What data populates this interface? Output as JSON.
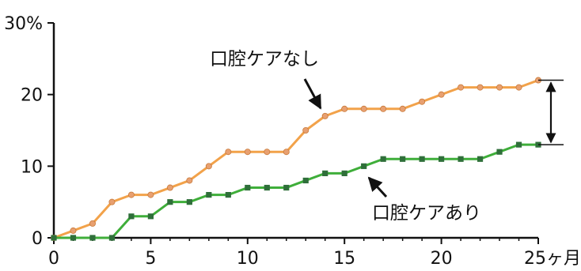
{
  "chart_data": {
    "type": "line",
    "x": [
      0,
      1,
      2,
      3,
      4,
      5,
      6,
      7,
      8,
      9,
      10,
      11,
      12,
      13,
      14,
      15,
      16,
      17,
      18,
      19,
      20,
      21,
      22,
      23,
      24,
      25
    ],
    "series": [
      {
        "name": "口腔ケアなし",
        "color": "#f2a24a",
        "marker_color": "#e8a070",
        "values": [
          0,
          1,
          2,
          5,
          6,
          6,
          7,
          8,
          10,
          12,
          12,
          12,
          12,
          15,
          17,
          18,
          18,
          18,
          18,
          19,
          20,
          21,
          21,
          21,
          21,
          22
        ]
      },
      {
        "name": "口腔ケアあり",
        "color": "#3fae3a",
        "marker_color": "#2f6f3a",
        "values": [
          0,
          0,
          0,
          0,
          3,
          3,
          5,
          5,
          6,
          6,
          7,
          7,
          7,
          8,
          9,
          9,
          10,
          11,
          11,
          11,
          11,
          11,
          11,
          12,
          13,
          13
        ]
      }
    ],
    "xlim": [
      0,
      25
    ],
    "ylim": [
      0,
      30
    ],
    "x_ticks": [
      0,
      5,
      10,
      15,
      20,
      25
    ],
    "x_tick_labels": [
      "0",
      "5",
      "10",
      "15",
      "20",
      "25ヶ月"
    ],
    "y_ticks": [
      0,
      10,
      20,
      30
    ],
    "y_tick_labels": [
      "0",
      "10",
      "20",
      "30%"
    ],
    "annotations": [
      {
        "text": "口腔ケアなし",
        "series": 0
      },
      {
        "text": "口腔ケアあり",
        "series": 1
      }
    ],
    "difference_marker": {
      "x": 25,
      "from": 13,
      "to": 22
    }
  }
}
